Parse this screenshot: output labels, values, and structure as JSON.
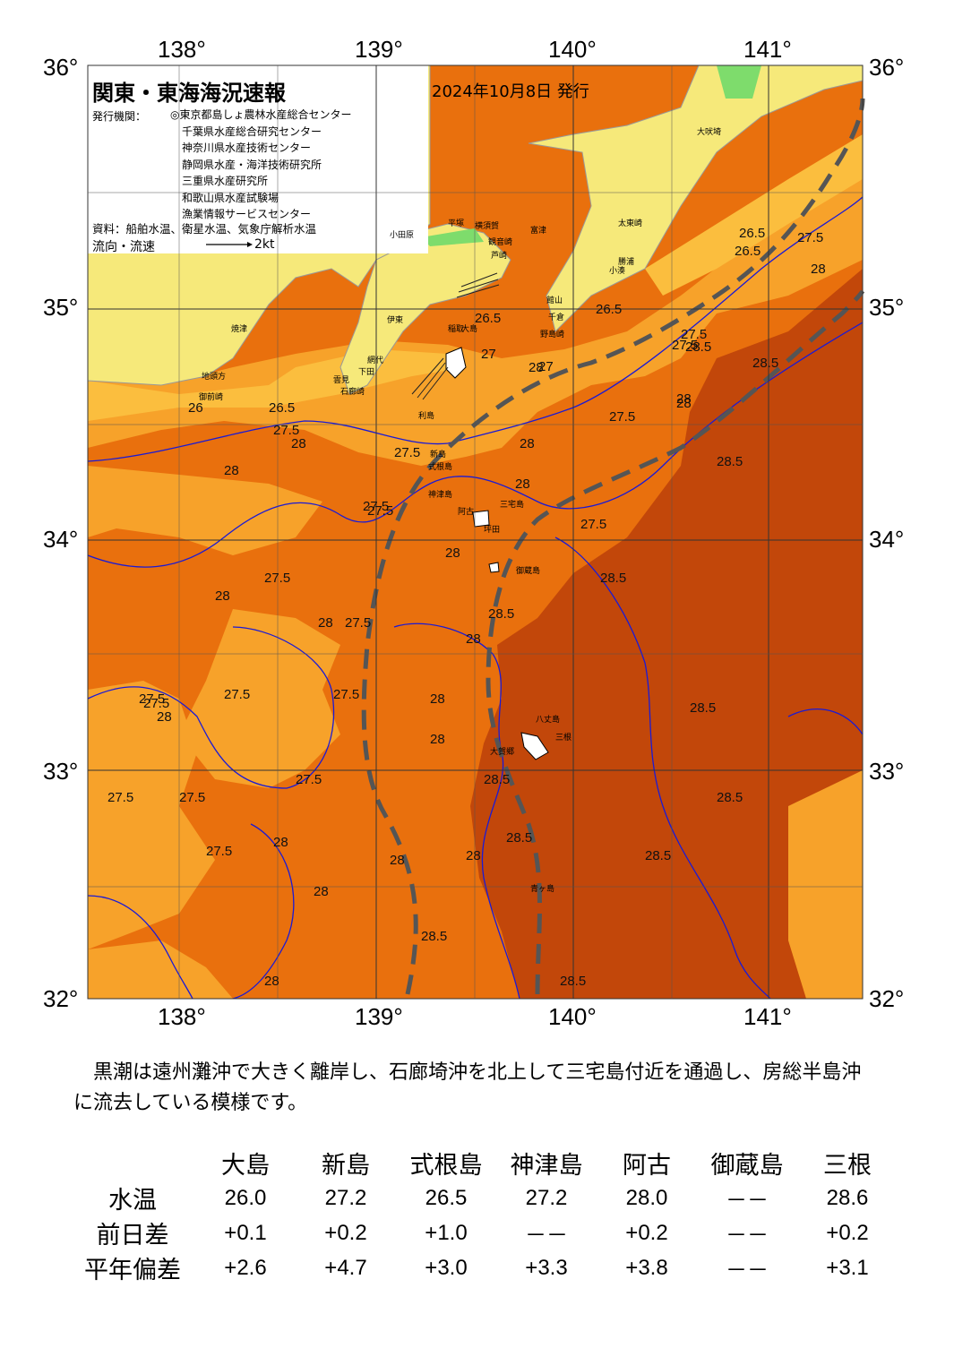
{
  "map": {
    "title": "関東・東海海況速報",
    "date": "2024年10月8日 発行",
    "issuer_label": "発行機関：",
    "issuers": [
      "◎東京都島しょ農林水産総合センター",
      "千葉県水産総合研究センター",
      "神奈川県水産技術センター",
      "静岡県水産・海洋技術研究所",
      "三重県水産研究所",
      "和歌山県水産試験場",
      "漁業情報サービスセンター"
    ],
    "source": "資料：船舶水温、衛星水温、気象庁解析水温",
    "flow_label": "流向・流速",
    "flow_scale": "2kt",
    "lon_labels": [
      "138°",
      "139°",
      "140°",
      "141°"
    ],
    "lat_labels": [
      "36°",
      "35°",
      "34°",
      "33°",
      "32°"
    ],
    "colors": {
      "t26": "#fbbe3e",
      "t27": "#f7a22a",
      "t28": "#e9700d",
      "t285": "#c2470a",
      "land": "#f6e97a",
      "coast": "#ffffff",
      "contour": "#1a1ad6",
      "kuroshio": "#555555"
    },
    "isotherm_labels": [
      "26.5",
      "27",
      "27.5",
      "28",
      "28.5",
      "26",
      "26.5",
      "27.5",
      "28",
      "27.5",
      "28",
      "27.5",
      "28",
      "28",
      "27.5",
      "28",
      "28.5",
      "28",
      "27.5",
      "27.5",
      "28.5",
      "28",
      "28.5",
      "28",
      "27.5",
      "28.5",
      "27.5",
      "28",
      "27.5",
      "27.5",
      "27.5",
      "27.5",
      "28",
      "28.5",
      "28.5",
      "28.5",
      "28",
      "28",
      "28.5",
      "28",
      "27.5",
      "28",
      "28.5",
      "28.5",
      "28",
      "27.5",
      "28",
      "27.5",
      "28.5",
      "28",
      "26.5",
      "27.5",
      "28",
      "27.5",
      "28",
      "26.5",
      "26.5",
      "27",
      "27.5"
    ],
    "places": [
      "大吠埼",
      "太東崎",
      "勝浦",
      "小湊",
      "館山",
      "千倉",
      "野島崎",
      "平塚",
      "横須賀",
      "富津",
      "観音崎",
      "芦崎",
      "小田原",
      "伊東",
      "稲取",
      "下田",
      "石廊崎",
      "雲見",
      "網代",
      "焼津",
      "地頭方",
      "御前崎",
      "大島",
      "利島",
      "新島",
      "式根島",
      "神津島",
      "阿古",
      "三宅島",
      "坪田",
      "御蔵島",
      "八丈島",
      "三根",
      "大賀郷",
      "青ヶ島"
    ]
  },
  "summary": "　黒潮は遠州灘沖で大きく離岸し、石廊埼沖を北上して三宅島付近を通過し、房総半島沖に流去している模様です。",
  "table": {
    "columns": [
      "大島",
      "新島",
      "式根島",
      "神津島",
      "阿古",
      "御蔵島",
      "三根"
    ],
    "rows": [
      {
        "label": "水温",
        "values": [
          "26.0",
          "27.2",
          "26.5",
          "27.2",
          "28.0",
          "－－",
          "28.6"
        ]
      },
      {
        "label": "前日差",
        "values": [
          "+0.1",
          "+0.2",
          "+1.0",
          "－－",
          "+0.2",
          "－－",
          "+0.2"
        ]
      },
      {
        "label": "平年偏差",
        "values": [
          "+2.6",
          "+4.7",
          "+3.0",
          "+3.3",
          "+3.8",
          "－－",
          "+3.1"
        ]
      }
    ]
  }
}
